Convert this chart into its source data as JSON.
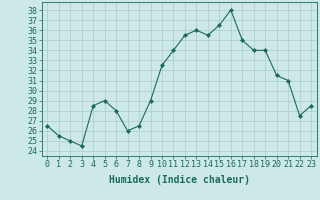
{
  "x": [
    0,
    1,
    2,
    3,
    4,
    5,
    6,
    7,
    8,
    9,
    10,
    11,
    12,
    13,
    14,
    15,
    16,
    17,
    18,
    19,
    20,
    21,
    22,
    23
  ],
  "y": [
    26.5,
    25.5,
    25.0,
    24.5,
    28.5,
    29.0,
    28.0,
    26.0,
    26.5,
    29.0,
    32.5,
    34.0,
    35.5,
    36.0,
    35.5,
    36.5,
    38.0,
    35.0,
    34.0,
    34.0,
    31.5,
    31.0,
    27.5,
    28.5
  ],
  "line_color": "#1a6b5a",
  "marker": "D",
  "marker_size": 2,
  "bg_color": "#cde8e8",
  "grid_color": "#aacccc",
  "xlabel": "Humidex (Indice chaleur)",
  "ylabel_ticks": [
    24,
    25,
    26,
    27,
    28,
    29,
    30,
    31,
    32,
    33,
    34,
    35,
    36,
    37,
    38
  ],
  "ylim": [
    23.5,
    38.8
  ],
  "xlim": [
    -0.5,
    23.5
  ],
  "tick_color": "#1a6b5a",
  "font_size_xlabel": 7,
  "font_size_yticks": 6,
  "font_size_xticks": 6
}
